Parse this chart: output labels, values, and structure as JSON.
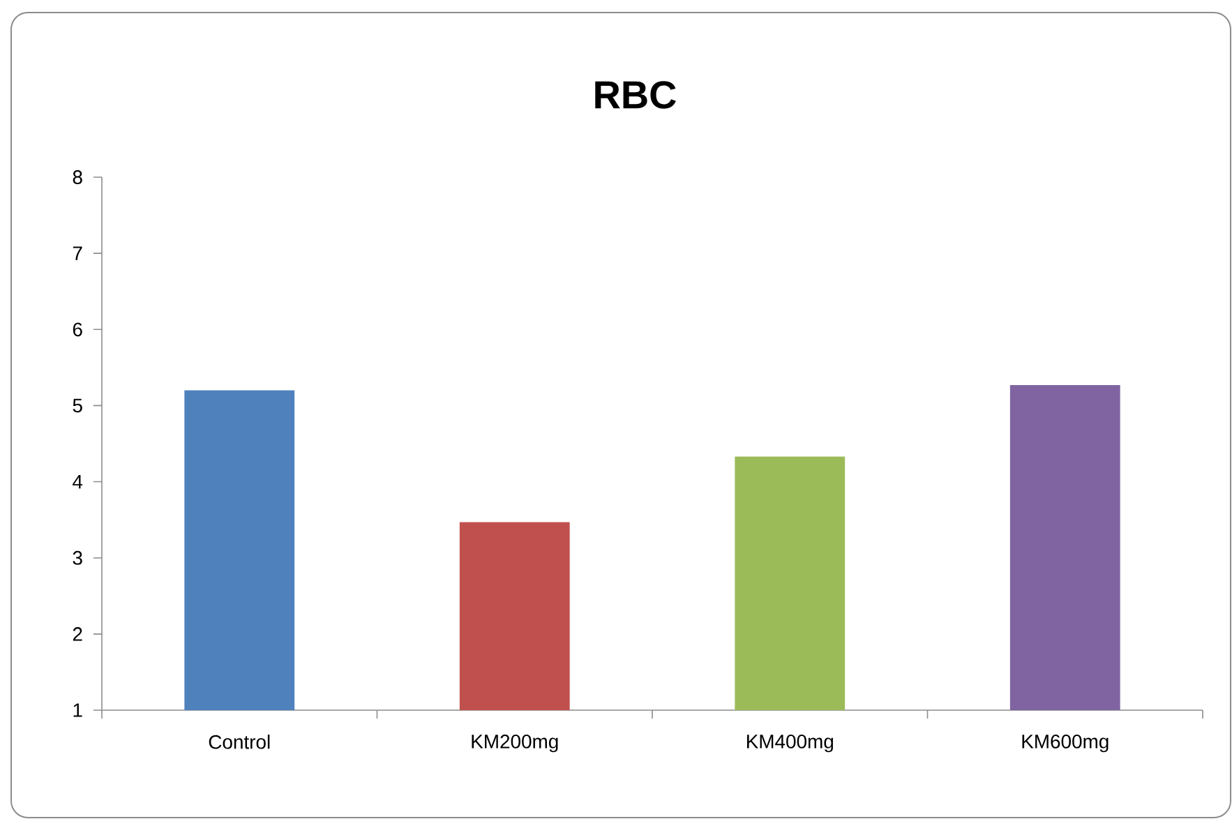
{
  "chart_data": {
    "type": "bar",
    "title": "RBC",
    "categories": [
      "Control",
      "KM200mg",
      "KM400mg",
      "KM600mg"
    ],
    "values": [
      5.2,
      3.47,
      4.33,
      5.27
    ],
    "colors": [
      "#4f81bd",
      "#c0504d",
      "#9bbb59",
      "#8064a2"
    ],
    "ylim": [
      1,
      8
    ],
    "yticks": [
      1,
      2,
      3,
      4,
      5,
      6,
      7,
      8
    ]
  }
}
